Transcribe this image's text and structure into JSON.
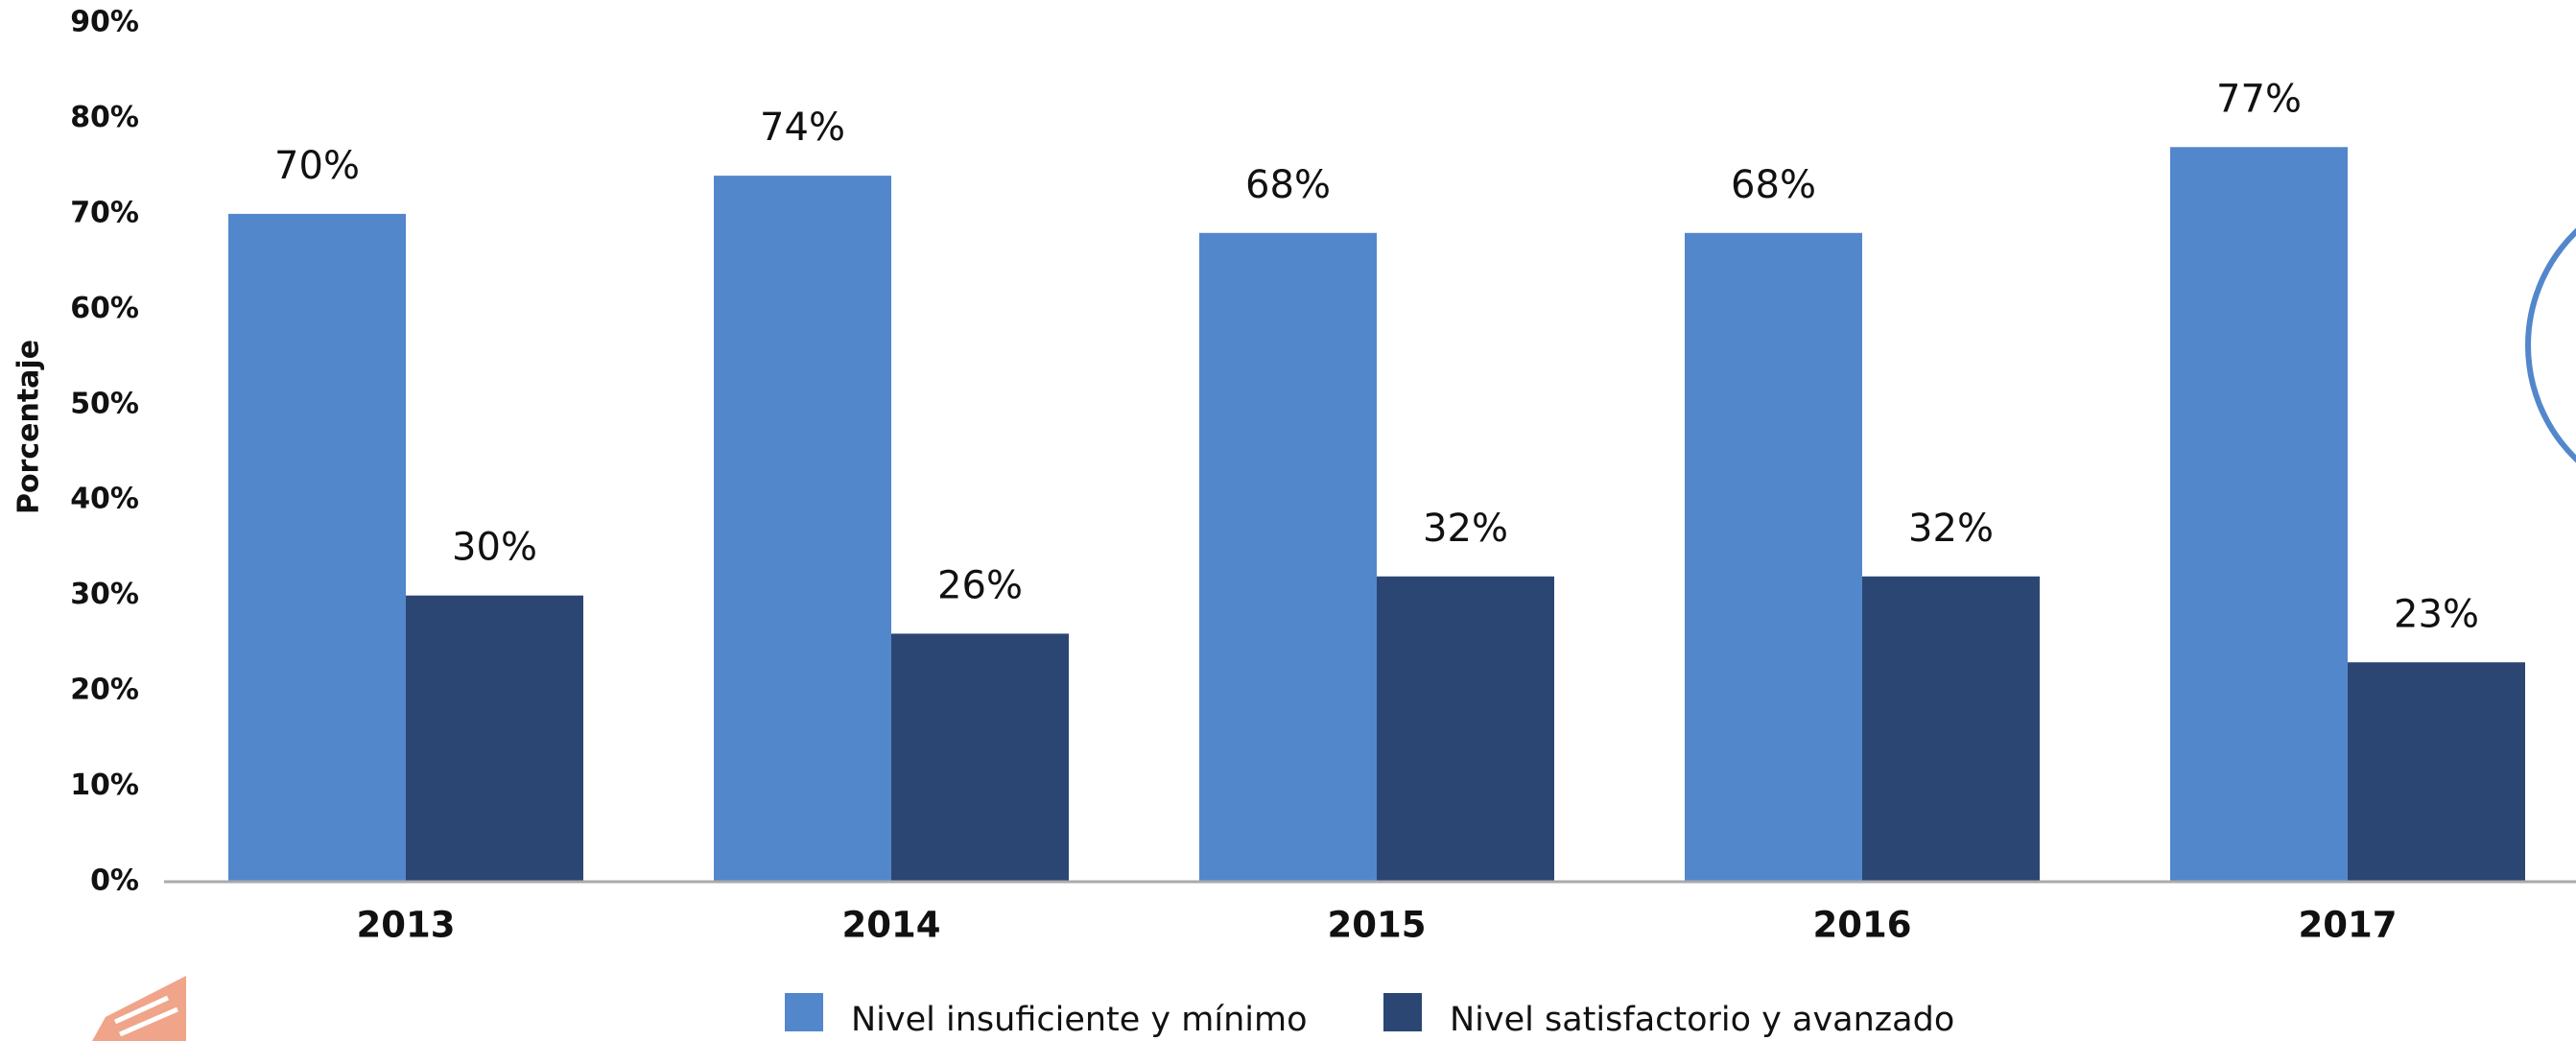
{
  "chart_data": {
    "type": "bar",
    "y_label": "Porcentaje",
    "categories": [
      "2013",
      "2014",
      "2015",
      "2016",
      "2017"
    ],
    "series": [
      {
        "name": "Nivel insuficiente y mínimo",
        "color": "#5387cc",
        "values": [
          70,
          74,
          68,
          68,
          77
        ],
        "value_labels": [
          "70%",
          "74%",
          "68%",
          "68%",
          "77%"
        ]
      },
      {
        "name": "Nivel satisfactorio y avanzado",
        "color": "#2b4673",
        "values": [
          30,
          26,
          32,
          32,
          23
        ],
        "value_labels": [
          "30%",
          "26%",
          "32%",
          "32%",
          "23%"
        ]
      }
    ],
    "ylim": [
      0,
      90
    ],
    "yticks": [
      {
        "value": 0,
        "label": "0%"
      },
      {
        "value": 10,
        "label": "10%"
      },
      {
        "value": 20,
        "label": "20%"
      },
      {
        "value": 30,
        "label": "30%"
      },
      {
        "value": 40,
        "label": "40%"
      },
      {
        "value": 50,
        "label": "50%"
      },
      {
        "value": 60,
        "label": "60%"
      },
      {
        "value": 70,
        "label": "70%"
      },
      {
        "value": 80,
        "label": "80%"
      },
      {
        "value": 90,
        "label": "90%"
      }
    ],
    "grid": false,
    "legend": "bottom"
  }
}
